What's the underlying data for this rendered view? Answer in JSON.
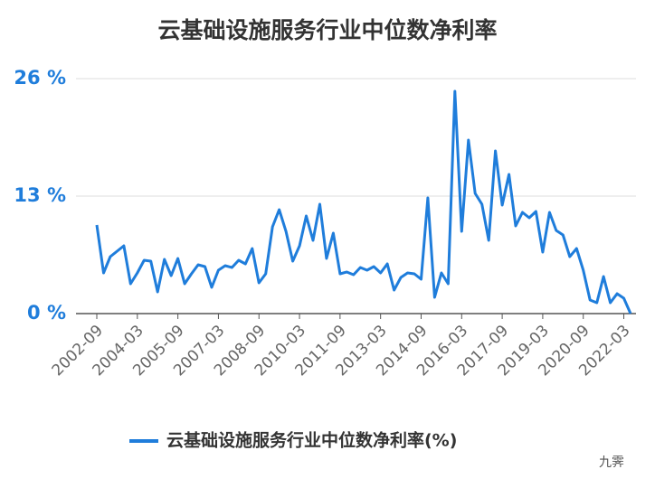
{
  "chart_data": {
    "type": "line",
    "title": "云基础设施服务行业中位数净利率",
    "categories": [
      "2002-09",
      null,
      null,
      null,
      null,
      null,
      "2004-03",
      null,
      null,
      null,
      null,
      null,
      "2005-09",
      null,
      null,
      null,
      null,
      null,
      "2007-03",
      null,
      null,
      null,
      null,
      null,
      "2008-09",
      null,
      null,
      null,
      null,
      null,
      "2010-03",
      null,
      null,
      null,
      null,
      null,
      "2011-09",
      null,
      null,
      null,
      null,
      null,
      "2013-03",
      null,
      null,
      null,
      null,
      null,
      "2014-09",
      null,
      null,
      null,
      null,
      null,
      "2016-03",
      null,
      null,
      null,
      null,
      null,
      "2017-09",
      null,
      null,
      null,
      null,
      null,
      "2019-03",
      null,
      null,
      null,
      null,
      null,
      "2020-09",
      null,
      null,
      null,
      null,
      null,
      "2022-03",
      null
    ],
    "series": [
      {
        "name": "云基础设施服务行业中位数净利率(%)",
        "color": "#1f7ddb",
        "values": [
          9.8,
          4.5,
          6.3,
          6.9,
          7.5,
          3.3,
          4.5,
          5.9,
          5.8,
          2.4,
          6.0,
          4.2,
          6.1,
          3.3,
          4.4,
          5.4,
          5.2,
          2.9,
          4.8,
          5.3,
          5.1,
          5.9,
          5.5,
          7.2,
          3.4,
          4.4,
          9.6,
          11.5,
          9.1,
          5.8,
          7.5,
          10.8,
          8.1,
          12.1,
          6.1,
          8.9,
          4.4,
          4.6,
          4.3,
          5.1,
          4.8,
          5.2,
          4.5,
          5.5,
          2.6,
          4.0,
          4.5,
          4.4,
          3.8,
          12.8,
          1.8,
          4.5,
          3.3,
          24.6,
          9.1,
          19.2,
          13.3,
          12.1,
          8.1,
          18.0,
          12.0,
          15.4,
          9.7,
          11.2,
          10.6,
          11.3,
          6.8,
          11.2,
          9.2,
          8.7,
          6.3,
          7.2,
          4.8,
          1.5,
          1.2,
          4.1,
          1.2,
          2.2,
          1.7,
          0.0
        ]
      }
    ],
    "ylim": [
      0,
      26
    ],
    "yticks": [
      {
        "value": 0,
        "label": "0 %"
      },
      {
        "value": 13,
        "label": "13 %"
      },
      {
        "value": 26,
        "label": "26 %"
      }
    ],
    "grid": true,
    "legend": "bottom",
    "watermark": "九霁"
  }
}
